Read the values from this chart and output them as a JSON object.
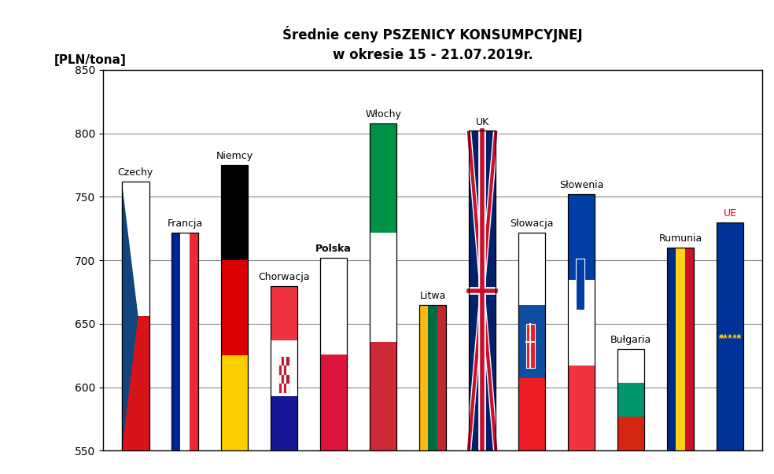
{
  "title_line1": "Średnie ceny PSZENICY KONSUMPCYJNEJ",
  "title_line2": "w okresie 15 - 21.07.2019r.",
  "ylabel": "[PLN/tona]",
  "ylim": [
    550,
    850
  ],
  "yticks": [
    550,
    600,
    650,
    700,
    750,
    800,
    850
  ],
  "countries": [
    "Czechy",
    "Francja",
    "Niemcy",
    "Chorwacja",
    "Polska",
    "Włochy",
    "Litwa",
    "UK",
    "Słowacja",
    "Słowenia",
    "Bułgaria",
    "Rumunia",
    "UE"
  ],
  "values": [
    762,
    722,
    775,
    680,
    702,
    808,
    665,
    802,
    722,
    752,
    630,
    710,
    730
  ],
  "bar_width": 0.55,
  "background_color": "#ffffff"
}
